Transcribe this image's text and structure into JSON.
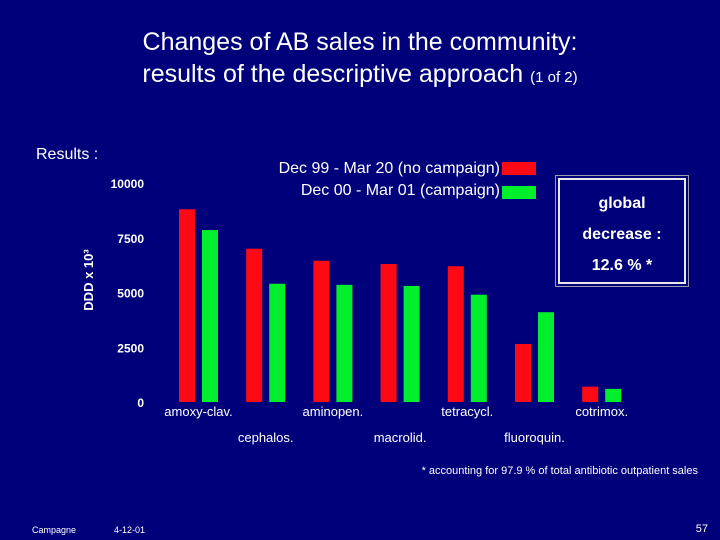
{
  "slide": {
    "title_line1": "Changes of AB sales in the community:",
    "title_line2": "results of the descriptive approach",
    "title_suffix": "(1 of 2)",
    "results_label": "Results :",
    "callout": [
      "global",
      "decrease :",
      "12.6 % *"
    ],
    "footnote": "* accounting for 97.9 % of total antibiotic outpatient sales",
    "footer_left": "Campagne",
    "footer_date": "4-12-01",
    "page_number": "57"
  },
  "chart_data": {
    "type": "bar",
    "ylabel": "DDD x 10³",
    "ylim": [
      0,
      10000
    ],
    "yticks": [
      0,
      2500,
      5000,
      7500,
      10000
    ],
    "categories": [
      "amoxy-clav.",
      "cephalos.",
      "aminopen.",
      "macrolid.",
      "tetracycl.",
      "fluoroquin.",
      "cotrimox."
    ],
    "series": [
      {
        "name": "Dec 99 - Mar 20 (no campaign)",
        "color": "#ff0a14",
        "values": [
          8800,
          7000,
          6450,
          6300,
          6200,
          2650,
          700
        ]
      },
      {
        "name": "Dec 00 - Mar 01 (campaign)",
        "color": "#00ef2c",
        "values": [
          7850,
          5400,
          5350,
          5300,
          4900,
          4100,
          600
        ]
      }
    ],
    "grid": false,
    "legend": "top-right"
  }
}
